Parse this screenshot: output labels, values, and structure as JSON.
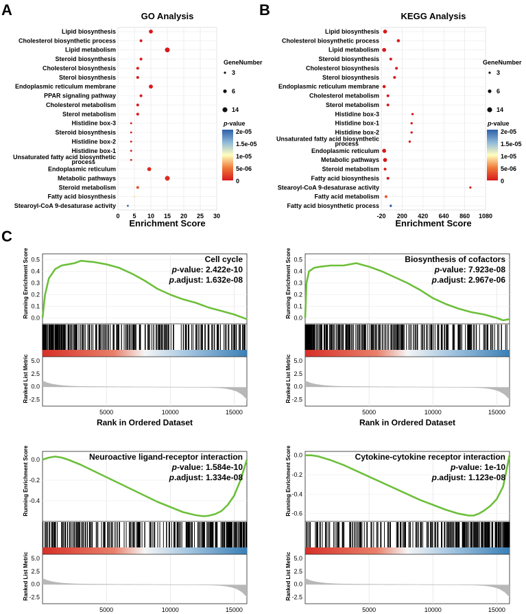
{
  "panels": {
    "a": {
      "letter": "A",
      "title": "GO Analysis",
      "xlabel": "Enrichment Score",
      "x_ticks": [
        "0",
        "5",
        "10",
        "15",
        "20",
        "25",
        "30"
      ],
      "legend_size_title": "GeneNumber",
      "legend_size_labels": [
        "3",
        "6",
        "14"
      ],
      "legend_color_title_italic": "p",
      "legend_color_title_rest": "-value",
      "legend_color_labels": [
        "2e-05",
        "1.5e-05",
        "1e-05",
        "5e-06",
        "0"
      ]
    },
    "b": {
      "letter": "B",
      "title": "KEGG Analysis",
      "xlabel": "Enrichment Score",
      "x_ticks": [
        "-20",
        "200",
        "420",
        "640",
        "860",
        "1080"
      ],
      "legend_size_title": "GeneNumber",
      "legend_size_labels": [
        "3",
        "6",
        "14"
      ],
      "legend_color_title_italic": "p",
      "legend_color_title_rest": "-value",
      "legend_color_labels": [
        "2e-05",
        "1.5e-05",
        "1e-05",
        "5e-06",
        "0"
      ]
    },
    "c": {
      "letter": "C"
    }
  },
  "chart_data": [
    {
      "type": "scatter",
      "title": "GO Analysis",
      "xlabel": "Enrichment Score",
      "xlim": [
        0,
        30
      ],
      "categories": [
        "Lipid biosynthesis",
        "Cholesterol biosynthetic process",
        "Lipid metabolism",
        "Steroid biosynthesis",
        "Cholesterol biosynthesis",
        "Sterol biosynthesis",
        "Endoplasmic reticulum membrane",
        "PPAR signaling pathway",
        "Cholesterol metabolism",
        "Sterol metabolism",
        "Histidine box-3",
        "Steroid biosynthesis",
        "Histidine box-2",
        "Histidine box-1",
        "Unsaturated fatty acid biosynthetic process",
        "Endoplasmic reticulum",
        "Metabolic pathways",
        "Steroid metabolism",
        "Fatty acid biosynthesis",
        "Stearoyl-CoA 9-desaturase activity"
      ],
      "x": [
        10,
        7,
        15,
        7,
        6,
        6,
        10,
        7,
        6,
        6,
        4,
        4,
        4,
        4,
        4,
        9.5,
        15,
        6,
        5,
        3
      ],
      "gene_number": [
        8,
        5,
        10,
        5,
        5,
        5,
        8,
        5,
        5,
        5,
        3,
        3,
        3,
        3,
        3,
        8,
        10,
        5,
        3,
        3
      ],
      "p_value": [
        0,
        0,
        0,
        0,
        0,
        0,
        0,
        0,
        0,
        0,
        0,
        0,
        0,
        0,
        0,
        1e-06,
        1e-06,
        3e-06,
        9e-06,
        2e-05
      ]
    },
    {
      "type": "scatter",
      "title": "KEGG Analysis",
      "xlabel": "Enrichment Score",
      "xlim": [
        -20,
        1080
      ],
      "categories": [
        "Lipid biosynthesis",
        "Cholesterol biosynthetic process",
        "Lipid metabolism",
        "Steroid biosynthesis",
        "Cholesterol biosynthesis",
        "Sterol biosynthesis",
        "Endoplasmic reticulum membrane",
        "Cholesterol metabolism",
        "Sterol metabolism",
        "Histidine box-3",
        "Histidine box-1",
        "Histidine box-2",
        "Unsaturated fatty acid biosynthetic process",
        "Endoplasmic reticulum",
        "Metabolic pathways",
        "Steroid metabolism",
        "Fatty acid biosynthesis",
        "Stearoyl-CoA 9-desaturase activity",
        "Fatty acid metabolism",
        "Fatty acid biosynthetic process"
      ],
      "x": [
        20,
        160,
        10,
        80,
        140,
        120,
        10,
        50,
        50,
        310,
        300,
        300,
        280,
        10,
        20,
        20,
        50,
        920,
        30,
        80
      ],
      "gene_number": [
        8,
        6,
        8,
        5,
        5,
        5,
        6,
        5,
        5,
        4,
        4,
        4,
        4,
        8,
        8,
        5,
        5,
        4,
        5,
        4
      ],
      "p_value": [
        0,
        0,
        0,
        0,
        0,
        0,
        0,
        0,
        0,
        0,
        0,
        0,
        0,
        0,
        0,
        0,
        0,
        1e-06,
        3e-06,
        2e-05
      ]
    },
    {
      "type": "line",
      "title": "Cell cycle",
      "p_value": "2.422e-10",
      "p_adjust": "1.632e-08",
      "es_ticks": [
        "0.0",
        "0.1",
        "0.2",
        "0.3",
        "0.4",
        "0.5"
      ],
      "es_range": [
        -0.05,
        0.55
      ],
      "es_curve_x": [
        0,
        200,
        500,
        1000,
        1500,
        2000,
        2500,
        3000,
        4000,
        5000,
        6000,
        7000,
        8000,
        9000,
        10000,
        11000,
        12000,
        13000,
        14000,
        15000,
        15500,
        16000
      ],
      "es_curve_y": [
        0,
        0.2,
        0.34,
        0.42,
        0.45,
        0.46,
        0.47,
        0.49,
        0.48,
        0.46,
        0.43,
        0.38,
        0.32,
        0.25,
        0.2,
        0.16,
        0.13,
        0.09,
        0.06,
        0.03,
        0.01,
        -0.01
      ],
      "rank_ticks": [
        "5000",
        "10000",
        "15000"
      ],
      "metric_ticks": [
        "5.0",
        "2.5",
        "0.0",
        "-2.5"
      ],
      "ylabel_es": "Running Enrichment Score",
      "ylabel_metric": "Ranked List Metric",
      "xlabel": "Rank in Ordered Dataset",
      "hit_density": "top"
    },
    {
      "type": "line",
      "title": "Biosynthesis of cofactors",
      "p_value": "7.923e-08",
      "p_adjust": "2.967e-06",
      "es_ticks": [
        "0.0",
        "0.1",
        "0.2",
        "0.3",
        "0.4",
        "0.5"
      ],
      "es_range": [
        -0.05,
        0.55
      ],
      "es_curve_x": [
        0,
        100,
        300,
        700,
        1200,
        2000,
        3000,
        4000,
        5000,
        6000,
        7000,
        8000,
        9000,
        10000,
        11000,
        12000,
        13000,
        14000,
        15000,
        15500,
        16000
      ],
      "es_curve_y": [
        0,
        0.3,
        0.4,
        0.43,
        0.44,
        0.45,
        0.45,
        0.47,
        0.44,
        0.4,
        0.35,
        0.3,
        0.24,
        0.17,
        0.12,
        0.08,
        0.05,
        0.03,
        0.0,
        -0.02,
        -0.01
      ],
      "rank_ticks": [
        "5000",
        "10000",
        "15000"
      ],
      "metric_ticks": [
        "5.0",
        "2.5",
        "0.0",
        "-2.5"
      ],
      "ylabel_es": "Running Enrichment Score",
      "ylabel_metric": "Ranked List Metric",
      "xlabel": "Rank in Ordered Dataset",
      "hit_density": "top"
    },
    {
      "type": "line",
      "title": "Neuroactive ligand-receptor interaction",
      "p_value": "1.584e-10",
      "p_adjust": "1.334e-08",
      "es_ticks": [
        "0.0",
        "-0.2",
        "-0.4"
      ],
      "es_range": [
        -0.6,
        0.08
      ],
      "es_curve_x": [
        0,
        500,
        1000,
        1500,
        2000,
        3000,
        4000,
        5000,
        6000,
        7000,
        8000,
        9000,
        10000,
        11000,
        12000,
        12600,
        13000,
        13500,
        14000,
        14500,
        15000,
        15500,
        16000
      ],
      "es_curve_y": [
        0,
        0.02,
        0.03,
        0.02,
        0.0,
        -0.05,
        -0.11,
        -0.17,
        -0.23,
        -0.29,
        -0.35,
        -0.41,
        -0.46,
        -0.51,
        -0.54,
        -0.55,
        -0.545,
        -0.53,
        -0.5,
        -0.44,
        -0.35,
        -0.2,
        0.0
      ],
      "rank_ticks": [
        "5000",
        "10000",
        "15000"
      ],
      "metric_ticks": [
        "5.0",
        "2.5",
        "0.0",
        "-2.5"
      ],
      "ylabel_es": "Running Enrichment Score",
      "ylabel_metric": "Ranked List Metric",
      "xlabel": "Rank in Ordered Dataset",
      "hit_density": "bottom"
    },
    {
      "type": "line",
      "title": "Cytokine-cytokine receptor interaction",
      "p_value": "1e-10",
      "p_adjust": "1.123e-08",
      "es_ticks": [
        "0.0",
        "-0.2",
        "-0.4",
        "-0.6"
      ],
      "es_range": [
        -0.68,
        0.04
      ],
      "es_curve_x": [
        0,
        500,
        1000,
        2000,
        3000,
        4000,
        5000,
        6000,
        7000,
        8000,
        9000,
        10000,
        11000,
        12000,
        12800,
        13200,
        13600,
        14000,
        14500,
        15000,
        15500,
        16000
      ],
      "es_curve_y": [
        0,
        0.0,
        -0.01,
        -0.05,
        -0.1,
        -0.16,
        -0.22,
        -0.28,
        -0.34,
        -0.4,
        -0.46,
        -0.51,
        -0.56,
        -0.6,
        -0.62,
        -0.62,
        -0.6,
        -0.57,
        -0.52,
        -0.45,
        -0.32,
        0.0
      ],
      "rank_ticks": [
        "5000",
        "10000",
        "15000"
      ],
      "metric_ticks": [
        "5.0",
        "2.5",
        "0.0",
        "-2.5"
      ],
      "ylabel_es": "Running Enrichment Score",
      "ylabel_metric": "Ranked List Metric",
      "xlabel": "Rank in Ordered Dataset",
      "hit_density": "bottom"
    }
  ]
}
